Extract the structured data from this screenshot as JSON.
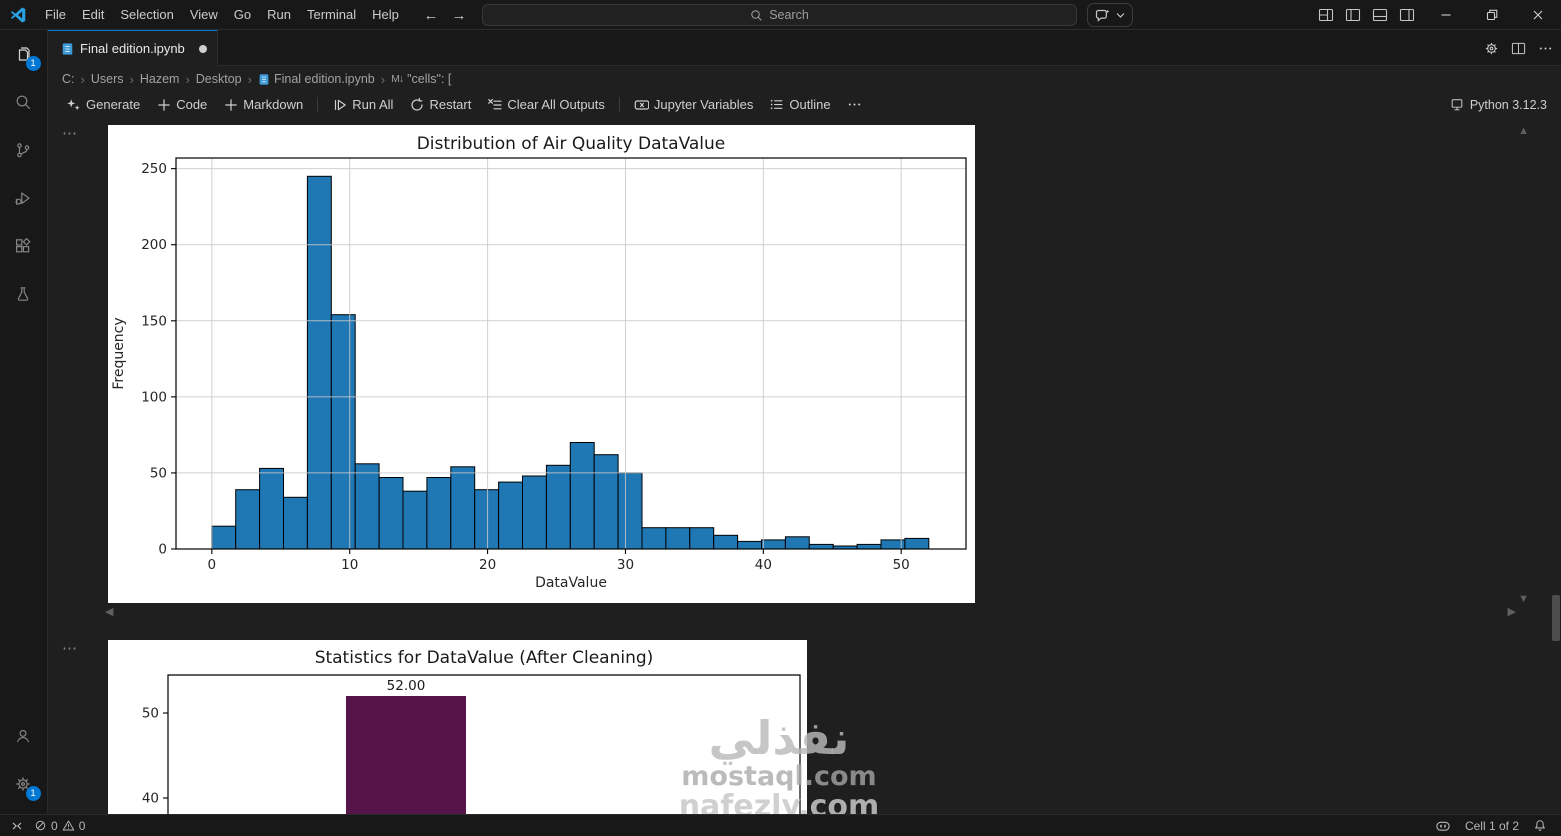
{
  "titlebar": {
    "menus": [
      "File",
      "Edit",
      "Selection",
      "View",
      "Go",
      "Run",
      "Terminal",
      "Help"
    ],
    "search_placeholder": "Search"
  },
  "tab": {
    "label": "Final edition.ipynb",
    "modified": true
  },
  "breadcrumb": {
    "items": [
      {
        "label": "C:"
      },
      {
        "label": "Users"
      },
      {
        "label": "Hazem"
      },
      {
        "label": "Desktop"
      },
      {
        "label": "Final edition.ipynb",
        "icon": "notebook-icon"
      },
      {
        "label": "\"cells\": [",
        "icon": "json-cell-icon"
      }
    ]
  },
  "notebook_toolbar": {
    "buttons": [
      {
        "icon": "sparkle-icon",
        "label": "Generate"
      },
      {
        "icon": "plus-icon",
        "label": "Code"
      },
      {
        "icon": "plus-icon",
        "label": "Markdown",
        "divider_after": true
      },
      {
        "icon": "run-all-icon",
        "label": "Run All"
      },
      {
        "icon": "restart-icon",
        "label": "Restart"
      },
      {
        "icon": "clear-outputs-icon",
        "label": "Clear All Outputs",
        "divider_after": true
      },
      {
        "icon": "jupyter-variables-icon",
        "label": "Jupyter Variables"
      },
      {
        "icon": "outline-icon",
        "label": "Outline"
      },
      {
        "icon": "ellipsis-icon",
        "label": ""
      }
    ],
    "kernel": {
      "label": "Python 3.12.3"
    }
  },
  "activity_bar": {
    "top": [
      {
        "name": "explorer",
        "icon": "files-icon",
        "badge": "1",
        "active": true
      },
      {
        "name": "search",
        "icon": "search-icon"
      },
      {
        "name": "source-control",
        "icon": "source-control-icon"
      },
      {
        "name": "run-debug",
        "icon": "debug-icon"
      },
      {
        "name": "extensions",
        "icon": "extensions-icon"
      },
      {
        "name": "testing",
        "icon": "beaker-icon"
      }
    ],
    "bottom": [
      {
        "name": "accounts",
        "icon": "account-icon"
      },
      {
        "name": "settings",
        "icon": "gear-icon",
        "badge": "1"
      }
    ]
  },
  "status_bar": {
    "errors": "0",
    "warnings": "0",
    "cell_indicator": "Cell 1 of 2"
  },
  "watermark": {
    "lines": [
      "نفذلي",
      "mostaql.com",
      "nafezly.com"
    ]
  },
  "chart_data": [
    {
      "type": "histogram",
      "title": "Distribution of Air Quality DataValue",
      "xlabel": "DataValue",
      "ylabel": "Frequency",
      "bar_color": "#1f77b4",
      "edge_color": "#000000",
      "bin_start": 0,
      "bin_width": 1.7333,
      "frequencies": [
        15,
        39,
        53,
        34,
        245,
        154,
        56,
        47,
        38,
        47,
        54,
        39,
        44,
        48,
        55,
        70,
        62,
        50,
        14,
        14,
        14,
        9,
        5,
        6,
        8,
        3,
        2,
        3,
        6,
        7
      ],
      "xticks": [
        0,
        10,
        20,
        30,
        40,
        50
      ],
      "yticks": [
        0,
        50,
        100,
        150,
        200,
        250
      ],
      "xlim": [
        -2.6,
        54.7
      ],
      "ylim": [
        0,
        257
      ],
      "grid": true
    },
    {
      "type": "bar",
      "title": "Statistics for DataValue (After Cleaning)",
      "values": [
        52
      ],
      "value_labels": [
        "52.00"
      ],
      "bar_color": "#561448",
      "yticks": [
        50,
        40
      ],
      "grid": false,
      "clipped_bottom": true
    }
  ]
}
